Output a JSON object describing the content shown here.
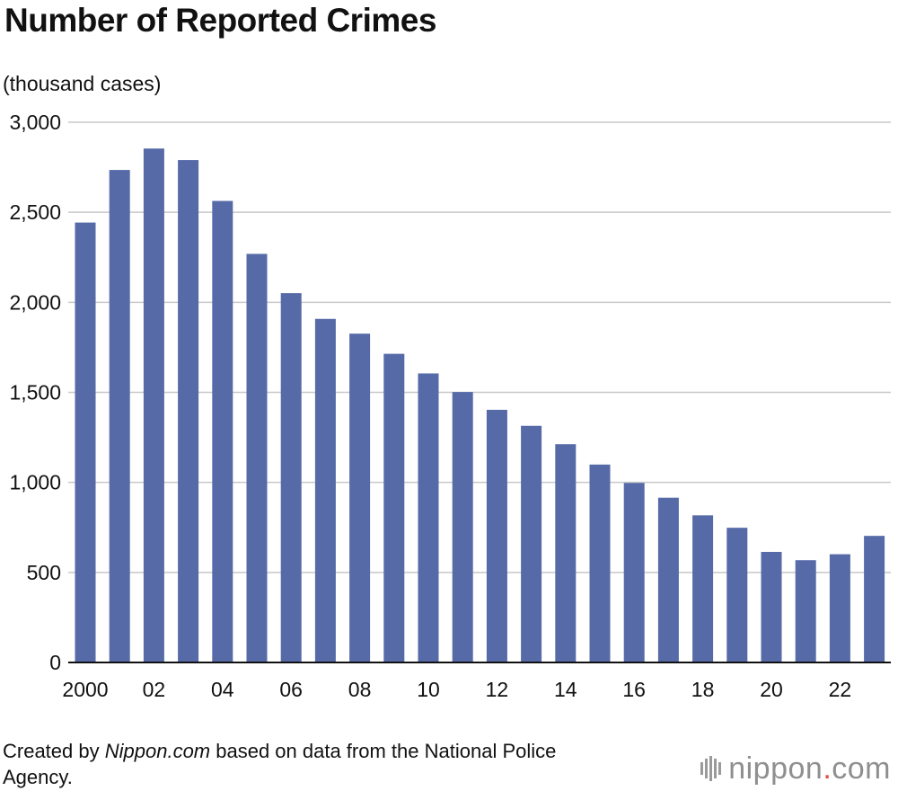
{
  "title": "Number of Reported Crimes",
  "unit_label": "(thousand cases)",
  "source": {
    "prefix": "Created by ",
    "site": "Nippon.com",
    "suffix": " based on data from the National Police Agency."
  },
  "logo": {
    "name": "nippon",
    "dot": ".",
    "tld": "com"
  },
  "colors": {
    "bar": "#566aa7",
    "grid": "#c8c8c8",
    "axis": "#111111"
  },
  "chart_data": {
    "type": "bar",
    "title": "Number of Reported Crimes",
    "ylabel": "(thousand cases)",
    "xlabel": "",
    "ylim": [
      0,
      3000
    ],
    "yticks": [
      0,
      500,
      1000,
      1500,
      2000,
      2500,
      3000
    ],
    "ytick_labels": [
      "0",
      "500",
      "1,000",
      "1,500",
      "2,000",
      "2,500",
      "3,000"
    ],
    "grid": true,
    "categories": [
      "2000",
      "2001",
      "2002",
      "2003",
      "2004",
      "2005",
      "2006",
      "2007",
      "2008",
      "2009",
      "2010",
      "2011",
      "2012",
      "2013",
      "2014",
      "2015",
      "2016",
      "2017",
      "2018",
      "2019",
      "2020",
      "2021",
      "2022",
      "2023"
    ],
    "values": [
      2443,
      2735,
      2854,
      2790,
      2563,
      2269,
      2051,
      1908,
      1826,
      1714,
      1605,
      1502,
      1403,
      1314,
      1212,
      1099,
      997,
      915,
      817,
      748,
      614,
      568,
      601,
      703
    ],
    "xtick_labels": [
      {
        "index": 0,
        "label": "2000"
      },
      {
        "index": 2,
        "label": "02"
      },
      {
        "index": 4,
        "label": "04"
      },
      {
        "index": 6,
        "label": "06"
      },
      {
        "index": 8,
        "label": "08"
      },
      {
        "index": 10,
        "label": "10"
      },
      {
        "index": 12,
        "label": "12"
      },
      {
        "index": 14,
        "label": "14"
      },
      {
        "index": 16,
        "label": "16"
      },
      {
        "index": 18,
        "label": "18"
      },
      {
        "index": 20,
        "label": "20"
      },
      {
        "index": 22,
        "label": "22"
      }
    ]
  }
}
